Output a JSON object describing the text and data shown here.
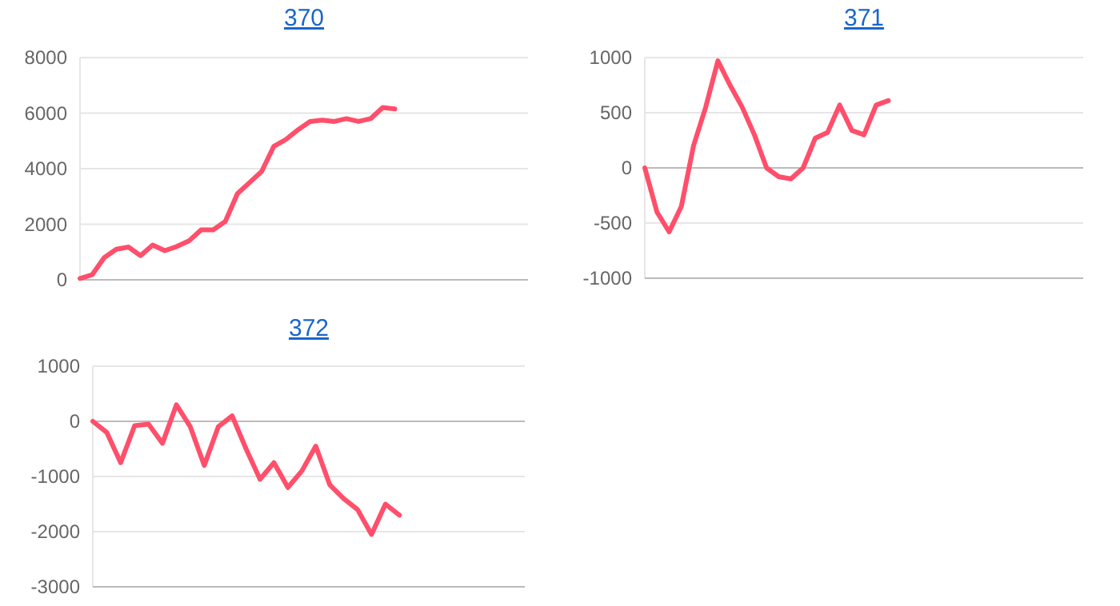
{
  "chart_data": [
    {
      "type": "line",
      "title": "370",
      "categories": [
        null,
        null,
        null,
        null,
        null,
        null,
        null,
        null,
        null,
        null,
        null,
        null,
        null,
        null,
        null,
        null,
        null,
        null,
        null,
        null,
        null,
        null,
        null,
        null,
        null,
        null,
        null,
        null,
        null,
        null,
        null,
        null,
        null,
        null,
        null,
        null,
        null,
        null
      ],
      "series": [
        {
          "color": "#ff4f6b",
          "values": [
            50,
            180,
            800,
            1100,
            1180,
            870,
            1250,
            1050,
            1200,
            1400,
            1800,
            1800,
            2100,
            3100,
            3500,
            3900,
            4800,
            5050,
            5400,
            5700,
            5750,
            5700,
            5800,
            5700,
            5800,
            6200,
            6150,
            null,
            null,
            null,
            null,
            null,
            null,
            null,
            null,
            null,
            null,
            null
          ]
        }
      ],
      "ylim": [
        0,
        8000
      ],
      "yticks": [
        0,
        2000,
        4000,
        6000,
        8000
      ],
      "grid": "y",
      "tick_labels": "y"
    },
    {
      "type": "line",
      "title": "371",
      "categories": [
        null,
        null,
        null,
        null,
        null,
        null,
        null,
        null,
        null,
        null,
        null,
        null,
        null,
        null,
        null,
        null,
        null,
        null,
        null,
        null,
        null,
        null,
        null,
        null,
        null,
        null,
        null,
        null,
        null,
        null,
        null,
        null,
        null,
        null,
        null,
        null,
        null
      ],
      "series": [
        {
          "color": "#ff4f6b",
          "values": [
            0,
            -400,
            -580,
            -350,
            200,
            550,
            970,
            750,
            550,
            300,
            0,
            -80,
            -100,
            0,
            270,
            320,
            570,
            340,
            300,
            570,
            610,
            null,
            null,
            null,
            null,
            null,
            null,
            null,
            null,
            null,
            null,
            null,
            null,
            null,
            null,
            null,
            null
          ]
        }
      ],
      "ylim": [
        -1000,
        1000
      ],
      "yticks": [
        -1000,
        -500,
        0,
        500,
        1000
      ],
      "grid": "y",
      "tick_labels": "y"
    },
    {
      "type": "line",
      "title": "372",
      "categories": [
        null,
        null,
        null,
        null,
        null,
        null,
        null,
        null,
        null,
        null,
        null,
        null,
        null,
        null,
        null,
        null,
        null,
        null,
        null,
        null,
        null,
        null,
        null,
        null,
        null,
        null,
        null,
        null,
        null,
        null,
        null,
        null
      ],
      "series": [
        {
          "color": "#ff4f6b",
          "values": [
            0,
            -200,
            -750,
            -80,
            -50,
            -400,
            300,
            -100,
            -800,
            -100,
            100,
            -500,
            -1050,
            -750,
            -1200,
            -900,
            -450,
            -1150,
            -1400,
            -1600,
            -2050,
            -1500,
            -1700,
            null,
            null,
            null,
            null,
            null,
            null,
            null,
            null,
            null
          ]
        }
      ],
      "ylim": [
        -3000,
        1000
      ],
      "yticks": [
        -3000,
        -2000,
        -1000,
        0,
        1000
      ],
      "grid": "y",
      "tick_labels": "y"
    }
  ]
}
